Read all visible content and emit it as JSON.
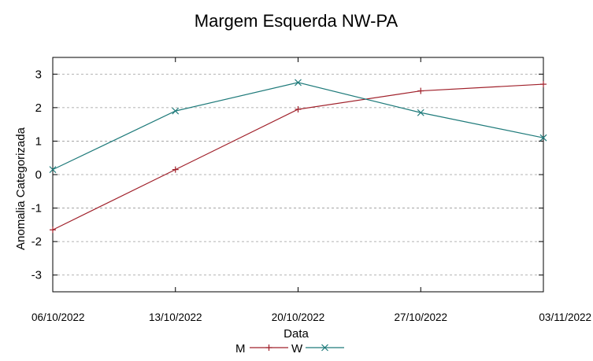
{
  "chart_data": {
    "type": "line",
    "title": "Margem Esquerda NW-PA",
    "xlabel": "Data",
    "ylabel": "Anomalia Categorizada",
    "x": [
      "06/10/2022",
      "13/10/2022",
      "20/10/2022",
      "27/10/2022",
      "03/11/2022"
    ],
    "yticks": [
      "3",
      "2",
      "1",
      "0",
      "-1",
      "-2",
      "-3"
    ],
    "ylim": [
      -3.5,
      3.5
    ],
    "grid": true,
    "legend": "bottom",
    "series": [
      {
        "name": "M",
        "color": "#a0202a",
        "marker": "plus",
        "values": [
          -1.65,
          0.15,
          1.95,
          2.5,
          2.7
        ]
      },
      {
        "name": "W",
        "color": "#1e7a7a",
        "marker": "x",
        "values": [
          0.15,
          1.9,
          2.75,
          1.85,
          1.1
        ]
      }
    ]
  }
}
